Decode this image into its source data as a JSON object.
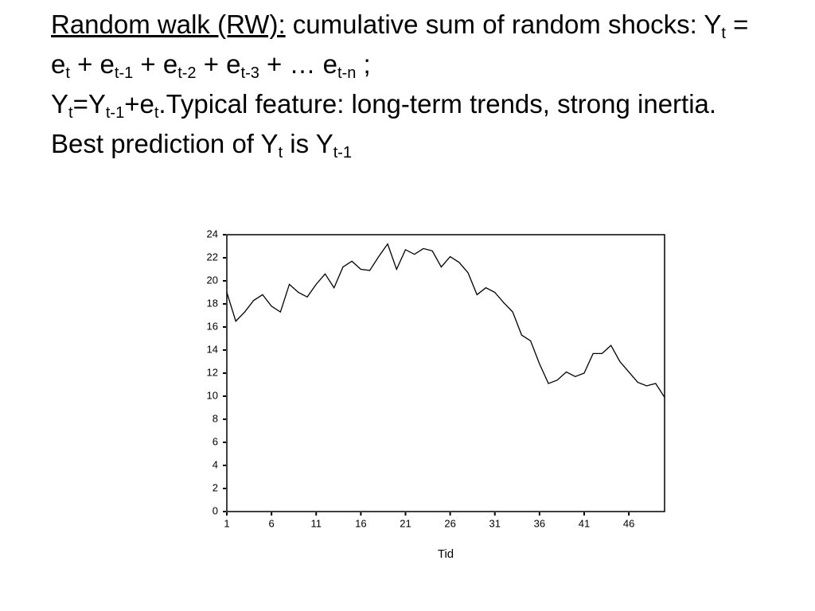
{
  "text": {
    "paragraphs": [
      [
        {
          "text": "Random walk (RW):",
          "style": "underline"
        },
        {
          "text": " cumulative sum of random shocks: Y",
          "style": "normal"
        },
        {
          "text": "t",
          "style": "sub"
        },
        {
          "text": " = e",
          "style": "normal"
        },
        {
          "text": "t",
          "style": "sub"
        },
        {
          "text": " + e",
          "style": "normal"
        },
        {
          "text": "t-1",
          "style": "sub"
        },
        {
          "text": " + e",
          "style": "normal"
        },
        {
          "text": "t-2",
          "style": "sub"
        },
        {
          "text": " + e",
          "style": "normal"
        },
        {
          "text": "t-3",
          "style": "sub"
        },
        {
          "text": " + … e",
          "style": "normal"
        },
        {
          "text": "t-n",
          "style": "sub"
        },
        {
          "text": " ;",
          "style": "normal"
        }
      ],
      [
        {
          "text": "Y",
          "style": "normal"
        },
        {
          "text": "t",
          "style": "sub"
        },
        {
          "text": "=Y",
          "style": "normal"
        },
        {
          "text": "t-1",
          "style": "sub"
        },
        {
          "text": "+e",
          "style": "normal"
        },
        {
          "text": "t",
          "style": "sub"
        },
        {
          "text": ".Typical feature: long-term trends, strong inertia. Best prediction of Y",
          "style": "normal"
        },
        {
          "text": "t",
          "style": "sub"
        },
        {
          "text": " is Y",
          "style": "normal"
        },
        {
          "text": "t-1",
          "style": "sub"
        }
      ]
    ]
  },
  "chart_data": {
    "type": "line",
    "xlabel": "Tid",
    "color": "#000000",
    "x": [
      1,
      2,
      3,
      4,
      5,
      6,
      7,
      8,
      9,
      10,
      11,
      12,
      13,
      14,
      15,
      16,
      17,
      18,
      19,
      20,
      21,
      22,
      23,
      24,
      25,
      26,
      27,
      28,
      29,
      30,
      31,
      32,
      33,
      34,
      35,
      36,
      37,
      38,
      39,
      40,
      41,
      42,
      43,
      44,
      45,
      46,
      47,
      48,
      49,
      50
    ],
    "values": [
      19.0,
      16.5,
      17.3,
      18.3,
      18.8,
      17.8,
      17.3,
      19.7,
      19.0,
      18.6,
      19.7,
      20.6,
      19.4,
      21.2,
      21.7,
      21.0,
      20.9,
      22.1,
      23.2,
      21.0,
      22.7,
      22.3,
      22.8,
      22.6,
      21.2,
      22.1,
      21.6,
      20.7,
      18.8,
      19.4,
      19.0,
      18.1,
      17.3,
      15.3,
      14.8,
      12.8,
      11.1,
      11.4,
      12.1,
      11.7,
      12.0,
      13.7,
      13.7,
      14.4,
      13.0,
      12.1,
      11.2,
      10.9,
      11.1,
      9.9
    ],
    "xlim": [
      1,
      50
    ],
    "xticks": [
      1,
      6,
      11,
      16,
      21,
      26,
      31,
      36,
      41,
      46
    ],
    "ylim": [
      0,
      24
    ],
    "yticks": [
      0,
      2,
      4,
      6,
      8,
      10,
      12,
      14,
      16,
      18,
      20,
      22,
      24
    ]
  }
}
